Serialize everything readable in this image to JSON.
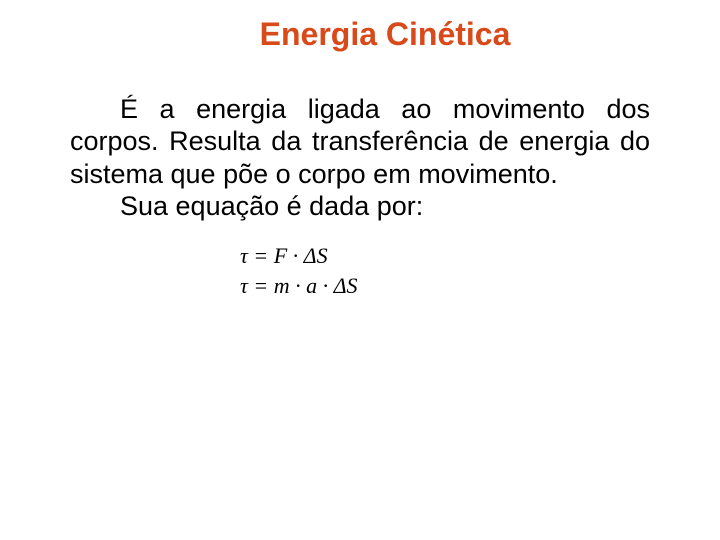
{
  "title": {
    "text": "Energia Cinética",
    "color": "#d84a1a",
    "fontsize": 32
  },
  "body": {
    "paragraph1": "É a energia ligada ao movimento dos corpos. Resulta da transferência de energia do sistema que põe o corpo em movimento.",
    "paragraph2": "Sua equação é dada por:",
    "color": "#000000",
    "fontsize": 27,
    "line_height": 1.2
  },
  "equations": {
    "eq1": "τ = F · ΔS",
    "eq2": "τ = m · a · ΔS",
    "color": "#000000",
    "fontsize": 22
  },
  "background_color": "#ffffff"
}
